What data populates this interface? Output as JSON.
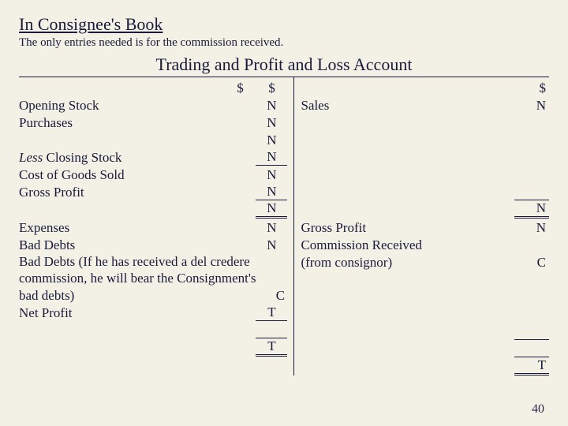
{
  "heading": "In Consignee's Book",
  "subheading": "The only entries needed is for the commission received.",
  "tpl_title": "Trading and Profit and Loss Account",
  "currency": "$",
  "debit": {
    "r1": {
      "desc": "Opening Stock",
      "v": "N"
    },
    "r2": {
      "desc": "Purchases",
      "v": "N"
    },
    "r3": {
      "desc": "",
      "v": "N"
    },
    "r4": {
      "desc_pre": "Less",
      "desc": " Closing Stock",
      "v": "N"
    },
    "r5": {
      "desc": "Cost of Goods Sold",
      "v": "N"
    },
    "r6": {
      "desc": "Gross Profit",
      "v": "N"
    },
    "r7": {
      "desc": "",
      "v": "N"
    },
    "r8": {
      "desc": "Expenses",
      "v": "N"
    },
    "r9": {
      "desc": "Bad Debts",
      "v": "N"
    },
    "r10": {
      "desc": "Bad Debts (If he has received a del credere commission, he will bear the Consignment's bad debts)",
      "v": "C"
    },
    "r11": {
      "desc": "Net Profit",
      "v": "T"
    },
    "r12": {
      "desc": "",
      "v": "T"
    }
  },
  "credit": {
    "r1": {
      "desc": "Sales",
      "v": "N"
    },
    "r2": {
      "desc": "",
      "v": "N"
    },
    "r3": {
      "desc": "Gross Profit",
      "v": "N"
    },
    "r4": {
      "desc": "Commission Received"
    },
    "r5": {
      "desc": "(from consignor)",
      "v": "C"
    },
    "r6": {
      "desc": "",
      "v": "T"
    }
  },
  "pagenum": "40"
}
